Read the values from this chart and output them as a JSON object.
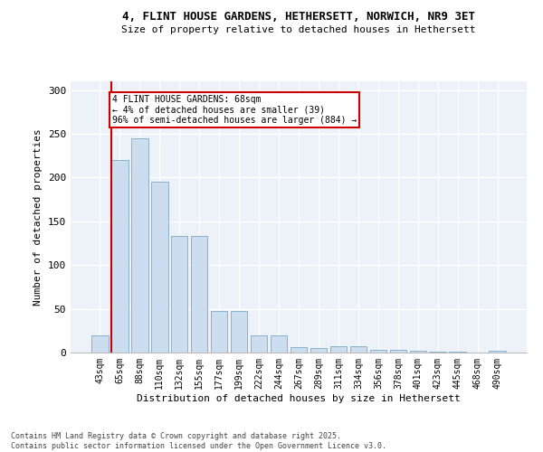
{
  "title_line1": "4, FLINT HOUSE GARDENS, HETHERSETT, NORWICH, NR9 3ET",
  "title_line2": "Size of property relative to detached houses in Hethersett",
  "xlabel": "Distribution of detached houses by size in Hethersett",
  "ylabel": "Number of detached properties",
  "categories": [
    "43sqm",
    "65sqm",
    "88sqm",
    "110sqm",
    "132sqm",
    "155sqm",
    "177sqm",
    "199sqm",
    "222sqm",
    "244sqm",
    "267sqm",
    "289sqm",
    "311sqm",
    "334sqm",
    "356sqm",
    "378sqm",
    "401sqm",
    "423sqm",
    "445sqm",
    "468sqm",
    "490sqm"
  ],
  "values": [
    20,
    220,
    245,
    195,
    133,
    133,
    48,
    48,
    20,
    20,
    6,
    5,
    7,
    7,
    3,
    3,
    2,
    1,
    1,
    0,
    2
  ],
  "bar_color": "#ccddef",
  "bar_edge_color": "#7aaac8",
  "annotation_text": "4 FLINT HOUSE GARDENS: 68sqm\n← 4% of detached houses are smaller (39)\n96% of semi-detached houses are larger (884) →",
  "annotation_box_color": "#ffffff",
  "annotation_box_edge": "#cc0000",
  "red_line_color": "#cc0000",
  "footer_line1": "Contains HM Land Registry data © Crown copyright and database right 2025.",
  "footer_line2": "Contains public sector information licensed under the Open Government Licence v3.0.",
  "background_color": "#edf2f8",
  "ylim": [
    0,
    310
  ],
  "yticks": [
    0,
    50,
    100,
    150,
    200,
    250,
    300
  ]
}
